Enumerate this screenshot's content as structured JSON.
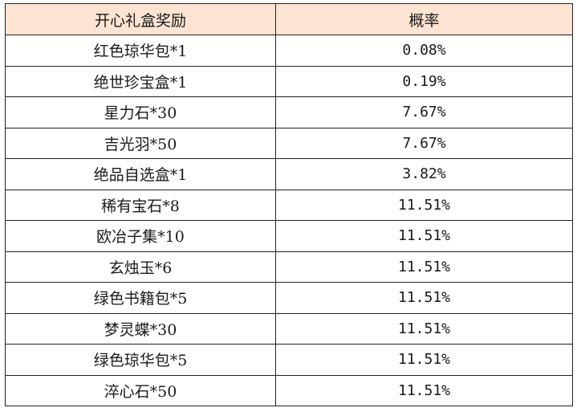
{
  "table": {
    "headers": {
      "reward": "开心礼盒奖励",
      "probability": "概率"
    },
    "rows": [
      {
        "reward": "红色琼华包*1",
        "probability": "0.08%"
      },
      {
        "reward": "绝世珍宝盒*1",
        "probability": "0.19%"
      },
      {
        "reward": "星力石*30",
        "probability": "7.67%"
      },
      {
        "reward": "吉光羽*50",
        "probability": "7.67%"
      },
      {
        "reward": "绝品自选盒*1",
        "probability": "3.82%"
      },
      {
        "reward": "稀有宝石*8",
        "probability": "11.51%"
      },
      {
        "reward": "欧冶子集*10",
        "probability": "11.51%"
      },
      {
        "reward": "玄烛玉*6",
        "probability": "11.51%"
      },
      {
        "reward": "绿色书籍包*5",
        "probability": "11.51%"
      },
      {
        "reward": "梦灵蝶*30",
        "probability": "11.51%"
      },
      {
        "reward": "绿色琼华包*5",
        "probability": "11.51%"
      },
      {
        "reward": "淬心石*50",
        "probability": "11.51%"
      }
    ]
  },
  "colors": {
    "header_background": "#fde4d2",
    "border": "#222222"
  }
}
